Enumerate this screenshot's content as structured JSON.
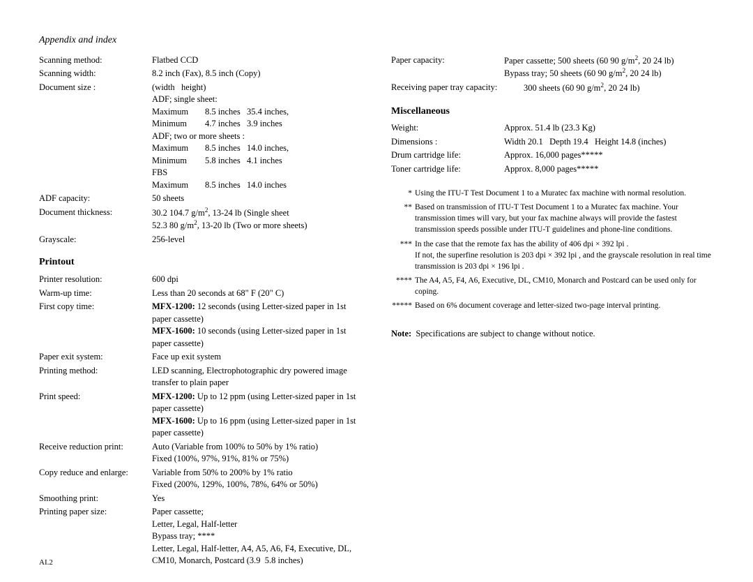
{
  "header": "Appendix and index",
  "page_number": "AI.2",
  "left": {
    "specs1": [
      {
        "label": "Scanning method:",
        "value": "Flatbed CCD"
      },
      {
        "label": "Scanning width:",
        "value": "8.2 inch (Fax), 8.5 inch (Copy)"
      }
    ],
    "docsize_label": "Document size :",
    "docsize_head": "(width   height)",
    "docsize_lines": [
      "ADF; single sheet:",
      {
        "sub": "Maximum",
        "val": "8.5 inches   35.4 inches,"
      },
      {
        "sub": "Minimum",
        "val": "4.7 inches   3.9 inches"
      },
      "ADF; two or more sheets :",
      {
        "sub": "Maximum",
        "val": "8.5 inches   14.0 inches,"
      },
      {
        "sub": "Minimum",
        "val": "5.8 inches   4.1 inches"
      },
      "FBS",
      {
        "sub": "Maximum",
        "val": "8.5 inches   14.0 inches"
      }
    ],
    "specs2": [
      {
        "label": "ADF capacity:",
        "value": "50 sheets"
      },
      {
        "label": "Document thickness:",
        "value": "30.2 104.7 g/m², 13-24 lb (Single sheet\n52.3 80 g/m², 13-20 lb (Two or more sheets)"
      },
      {
        "label": "Grayscale:",
        "value": "256-level"
      }
    ],
    "printout_heading": "Printout",
    "printout": [
      {
        "label": "Printer resolution:",
        "value": "600 dpi"
      },
      {
        "label": "Warm-up time:",
        "value": "Less than 20 seconds at 68\" F (20\" C)"
      }
    ],
    "first_copy_label": "First copy time:",
    "first_copy_lines": [
      {
        "model": "MFX-1200:",
        "text": " 12 seconds (using Letter-sized paper in 1st paper cassette)"
      },
      {
        "model": "MFX-1600:",
        "text": " 10 seconds (using Letter-sized paper in 1st paper cassette)"
      }
    ],
    "printout2": [
      {
        "label": "Paper exit system:",
        "value": "Face up exit system"
      },
      {
        "label": "Printing method:",
        "value": "LED scanning, Electrophotographic dry powered image transfer to plain paper"
      }
    ],
    "print_speed_label": "Print speed:",
    "print_speed_lines": [
      {
        "model": "MFX-1200:",
        "text": " Up to 12 ppm (using Letter-sized paper in 1st paper cassette)"
      },
      {
        "model": "MFX-1600:",
        "text": " Up to 16 ppm (using Letter-sized paper in 1st paper cassette)"
      }
    ],
    "printout3": [
      {
        "label": "Receive reduction print:",
        "value": "Auto (Variable from 100% to 50% by 1% ratio)\nFixed (100%, 97%, 91%, 81% or 75%)"
      },
      {
        "label": "Copy reduce and enlarge:",
        "value": "Variable from 50% to 200% by 1% ratio\nFixed (200%, 129%, 100%, 78%, 64% or 50%)"
      },
      {
        "label": "Smoothing print:",
        "value": "Yes"
      },
      {
        "label": "Printing paper size:",
        "value": "Paper cassette;\nLetter, Legal, Half-letter\nBypass tray; ****\nLetter, Legal, Half-letter, A4, A5, A6, F4, Executive, DL, CM10, Monarch, Postcard (3.9  5.8 inches)"
      }
    ]
  },
  "right": {
    "specs_top": [
      {
        "label": "Paper capacity:",
        "value": "Paper cassette; 500 sheets (60 90 g/m², 20 24 lb)\nBypass tray; 50 sheets (60 90 g/m², 20 24 lb)"
      }
    ],
    "specs_top_wide": [
      {
        "label": "Receiving paper tray capacity:",
        "value": "300 sheets (60 90 g/m², 20 24 lb)"
      }
    ],
    "misc_heading": "Miscellaneous",
    "misc": [
      {
        "label": "Weight:",
        "value": "Approx. 51.4 lb (23.3 Kg)"
      },
      {
        "label": "Dimensions :",
        "value": "Width 20.1   Depth 19.4   Height 14.8 (inches)"
      },
      {
        "label": "Drum cartridge life:",
        "value": "Approx. 16,000 pages*****"
      },
      {
        "label": "Toner cartridge life:",
        "value": "Approx. 8,000 pages*****"
      }
    ],
    "footnotes": [
      {
        "mark": "*",
        "text": "Using the ITU-T Test Document 1 to a Muratec fax machine with normal resolution."
      },
      {
        "mark": "**",
        "text": "Based on transmission of ITU-T Test Document 1 to a Muratec fax machine. Your transmission times will vary, but your fax machine always will provide the fastest transmission speeds possible under ITU-T guidelines and phone-line conditions."
      },
      {
        "mark": "***",
        "text": "In the case that the remote fax has the ability of  406 dpi × 392 lpi .\nIf not, the superfine resolution is  203 dpi × 392 lpi , and the grayscale resolution in real time transmission is  203 dpi × 196 lpi ."
      },
      {
        "mark": "****",
        "text": "The A4, A5, F4, A6, Executive, DL, CM10, Monarch and Postcard can be used only for coping."
      },
      {
        "mark": "*****",
        "text": "Based on 6% document coverage and letter-sized two-page interval printing."
      }
    ],
    "note_label": "Note:",
    "note_text": "  Specifications are subject to change without notice."
  }
}
